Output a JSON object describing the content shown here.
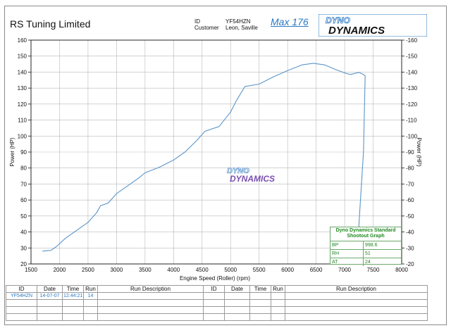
{
  "header": {
    "company": "RS Tuning Limited",
    "id_label": "ID",
    "id_value": "YF54HZN",
    "customer_label": "Customer",
    "customer_value": "Leon, Saville",
    "max_text": "Max 176",
    "logo_text_top": "DYNO",
    "logo_text_bottom": "DYNAMICS"
  },
  "watermark": {
    "line1": "DYNO",
    "line2": "DYNAMICS"
  },
  "legend": {
    "title_line1": "Dyno Dynamics Standard",
    "title_line2": "Shootout Graph",
    "rows": [
      {
        "key": "BP",
        "value": "998.6"
      },
      {
        "key": "RH",
        "value": "51"
      },
      {
        "key": "AT",
        "value": "24"
      }
    ]
  },
  "table": {
    "headers": [
      "ID",
      "Date",
      "Time",
      "Run",
      "Run Description",
      "ID",
      "Date",
      "Time",
      "Run",
      "Run Description"
    ],
    "rows": [
      [
        "YF54HZN",
        "14-07-07",
        "12:44:21",
        "14",
        "",
        "",
        "",
        "",
        "",
        ""
      ],
      [
        "",
        "",
        "",
        "",
        "",
        "",
        "",
        "",
        "",
        ""
      ],
      [
        "",
        "",
        "",
        "",
        "",
        "",
        "",
        "",
        "",
        ""
      ],
      [
        "",
        "",
        "",
        "",
        "",
        "",
        "",
        "",
        "",
        ""
      ]
    ]
  },
  "colors": {
    "curve": "#5b95c9",
    "axis": "#111111",
    "grid": "#b9b9b9",
    "accent": "#2a78c2",
    "legend": "#1f8a1f"
  },
  "chart_data": {
    "type": "line",
    "title": "",
    "xlabel": "Engine Speed (Roller) (rpm)",
    "ylabel": "Power (HP)",
    "ylabel_right": "Power (HP)",
    "xlim": [
      1500,
      8000
    ],
    "ylim": [
      20,
      160
    ],
    "x_ticks": [
      1500,
      2000,
      2500,
      3000,
      3500,
      4000,
      4500,
      5000,
      5500,
      6000,
      6500,
      7000,
      7500,
      8000
    ],
    "y_ticks": [
      20,
      30,
      40,
      50,
      60,
      70,
      80,
      90,
      100,
      110,
      120,
      130,
      140,
      150,
      160
    ],
    "grid": true,
    "series": [
      {
        "values_xy": [
          [
            1700,
            28
          ],
          [
            1850,
            28.5
          ],
          [
            1950,
            31
          ],
          [
            2100,
            36
          ],
          [
            2300,
            41
          ],
          [
            2500,
            46
          ],
          [
            2650,
            52
          ],
          [
            2720,
            56.5
          ],
          [
            2850,
            58
          ],
          [
            3000,
            64
          ],
          [
            3200,
            69
          ],
          [
            3400,
            74
          ],
          [
            3500,
            77
          ],
          [
            3750,
            80.5
          ],
          [
            4000,
            85
          ],
          [
            4200,
            90
          ],
          [
            4400,
            97
          ],
          [
            4550,
            103
          ],
          [
            4800,
            106
          ],
          [
            5000,
            115
          ],
          [
            5100,
            122
          ],
          [
            5250,
            131
          ],
          [
            5500,
            132.5
          ],
          [
            5750,
            137
          ],
          [
            6000,
            141
          ],
          [
            6250,
            144.5
          ],
          [
            6450,
            145.5
          ],
          [
            6650,
            144.5
          ],
          [
            6850,
            141.5
          ],
          [
            7000,
            139.5
          ],
          [
            7100,
            138.5
          ],
          [
            7250,
            139.8
          ],
          [
            7330,
            138.5
          ],
          [
            7360,
            137.5
          ],
          [
            7330,
            90
          ],
          [
            7260,
            50
          ],
          [
            7210,
            20
          ]
        ]
      }
    ]
  }
}
